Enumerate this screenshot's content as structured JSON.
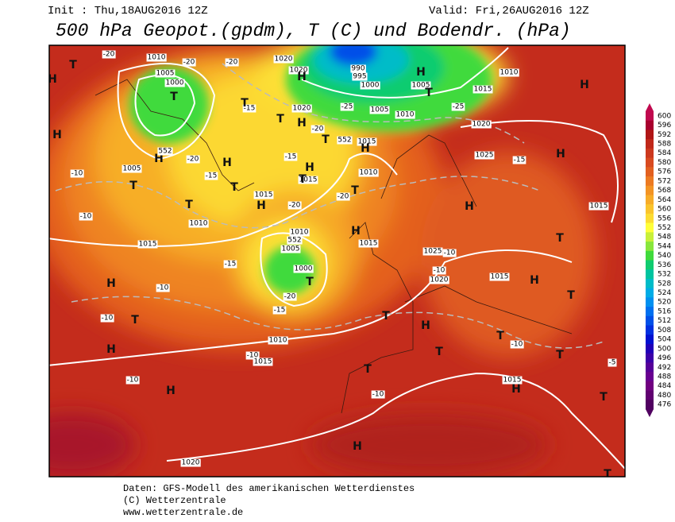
{
  "header": {
    "init": "Init : Thu,18AUG2016 12Z",
    "valid": "Valid: Fri,26AUG2016 12Z",
    "title": "500 hPa Geopot.(gpdm), T (C) und Bodendr. (hPa)"
  },
  "colorbar": {
    "levels": [
      600,
      596,
      592,
      588,
      584,
      580,
      576,
      572,
      568,
      564,
      560,
      556,
      552,
      548,
      544,
      540,
      536,
      532,
      528,
      524,
      520,
      516,
      512,
      508,
      504,
      500,
      496,
      492,
      488,
      484,
      480,
      476
    ],
    "colors": [
      "#c0084e",
      "#a8002e",
      "#b01616",
      "#c0281a",
      "#cc381e",
      "#d84a20",
      "#e26020",
      "#ec7a22",
      "#f39424",
      "#f7ac28",
      "#fac42c",
      "#fcdc32",
      "#ffff3a",
      "#c8f03a",
      "#88e63c",
      "#40da3c",
      "#10cc70",
      "#00c4a0",
      "#00bcc8",
      "#00ace6",
      "#0090f0",
      "#0070f0",
      "#0050e8",
      "#0030e0",
      "#0010d0",
      "#2000b8",
      "#3c00a8",
      "#560098",
      "#680090",
      "#700080",
      "#600070",
      "#500060"
    ]
  },
  "map_labels": [
    "H",
    "T",
    -20,
    1010,
    -20,
    1005,
    1000,
    "T",
    "H",
    552,
    -20,
    1005,
    "T",
    -10,
    "H",
    -10,
    1015,
    -15,
    "T",
    1010,
    "H",
    "T",
    -20,
    -15,
    "T",
    1020,
    1020,
    "H",
    "T",
    "H",
    1020,
    -20,
    "T",
    552,
    1015,
    "H",
    -15,
    "H",
    1015,
    "T",
    990,
    995,
    1000,
    -25,
    1005,
    1010,
    "H",
    1005,
    "T",
    -25,
    1015,
    1010,
    "H",
    1020,
    1025,
    -15,
    "H",
    1015,
    1010,
    "T",
    -20,
    "H",
    1015,
    -20,
    "H",
    "H",
    1015,
    1010,
    552,
    1005,
    1000,
    "T",
    -15,
    -20,
    -15,
    "H",
    -10,
    -10,
    "T",
    "H",
    1010,
    -10,
    1015,
    -10,
    "H",
    "T",
    -10,
    "H",
    "T",
    "T",
    1025,
    -10,
    -10,
    1020,
    1015,
    "H",
    "T",
    "T",
    "T",
    -10,
    1015,
    "H",
    "T",
    -5,
    "T",
    "H",
    1020,
    "T"
  ],
  "footer": {
    "lines": [
      "Daten: GFS-Modell des amerikanischen Wetterdienstes",
      "(C) Wetterzentrale",
      "www.wetterzentrale.de"
    ]
  }
}
